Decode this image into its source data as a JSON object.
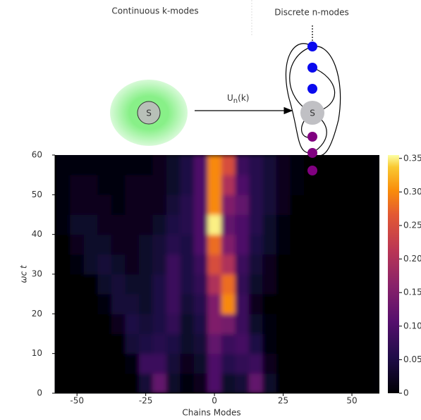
{
  "chart_data": {
    "type": "heatmap",
    "x_label": "Chains Modes",
    "y_label": "ωc t",
    "x": [
      -55,
      -50,
      -45,
      -40,
      -35,
      -30,
      -25,
      -20,
      -15,
      -10,
      -5,
      0,
      5,
      10,
      15,
      20,
      25,
      30,
      35,
      40,
      45,
      50,
      55
    ],
    "y": [
      2.5,
      7.5,
      12.5,
      17.5,
      22.5,
      27.5,
      32.5,
      37.5,
      42.5,
      47.5,
      52.5,
      57.5
    ],
    "z": [
      [
        0,
        0,
        0,
        0,
        0,
        0,
        0.04,
        0.12,
        0.03,
        0.01,
        0.02,
        0.1,
        0.03,
        0.04,
        0.12,
        0.03,
        0,
        0,
        0,
        0,
        0,
        0,
        0
      ],
      [
        0,
        0,
        0,
        0,
        0,
        0.01,
        0.08,
        0.08,
        0.04,
        0.02,
        0.03,
        0.1,
        0.06,
        0.07,
        0.08,
        0.02,
        0,
        0,
        0,
        0,
        0,
        0,
        0
      ],
      [
        0,
        0,
        0,
        0,
        0,
        0.04,
        0.05,
        0.06,
        0.05,
        0.03,
        0.04,
        0.12,
        0.08,
        0.09,
        0.05,
        0.01,
        0,
        0,
        0,
        0,
        0,
        0,
        0
      ],
      [
        0,
        0,
        0,
        0,
        0.02,
        0.05,
        0.04,
        0.05,
        0.07,
        0.03,
        0.05,
        0.15,
        0.14,
        0.08,
        0.03,
        0.01,
        0,
        0,
        0,
        0,
        0,
        0,
        0
      ],
      [
        0,
        0,
        0,
        0.01,
        0.04,
        0.04,
        0.03,
        0.05,
        0.08,
        0.04,
        0.06,
        0.15,
        0.3,
        0.08,
        0.02,
        0,
        0,
        0,
        0,
        0,
        0,
        0,
        0
      ],
      [
        0,
        0,
        0,
        0.03,
        0.04,
        0.03,
        0.03,
        0.05,
        0.08,
        0.05,
        0.07,
        0.2,
        0.28,
        0.07,
        0.03,
        0.02,
        0,
        0,
        0,
        0,
        0,
        0,
        0
      ],
      [
        0,
        0.01,
        0.03,
        0.04,
        0.03,
        0.02,
        0.03,
        0.04,
        0.08,
        0.05,
        0.08,
        0.25,
        0.2,
        0.08,
        0.04,
        0.02,
        0,
        0,
        0,
        0,
        0,
        0,
        0
      ],
      [
        0,
        0.02,
        0.03,
        0.03,
        0.02,
        0.02,
        0.03,
        0.04,
        0.06,
        0.05,
        0.1,
        0.28,
        0.15,
        0.1,
        0.05,
        0.03,
        0.01,
        0,
        0,
        0,
        0,
        0,
        0
      ],
      [
        0.01,
        0.03,
        0.03,
        0.02,
        0.02,
        0.02,
        0.02,
        0.03,
        0.05,
        0.06,
        0.1,
        0.35,
        0.12,
        0.1,
        0.06,
        0.03,
        0.01,
        0,
        0,
        0,
        0,
        0,
        0
      ],
      [
        0.01,
        0.02,
        0.02,
        0.02,
        0.01,
        0.02,
        0.02,
        0.02,
        0.04,
        0.06,
        0.1,
        0.3,
        0.15,
        0.12,
        0.06,
        0.04,
        0.02,
        0,
        0,
        0,
        0,
        0,
        0
      ],
      [
        0.01,
        0.02,
        0.02,
        0.01,
        0.01,
        0.02,
        0.02,
        0.02,
        0.03,
        0.05,
        0.1,
        0.3,
        0.2,
        0.1,
        0.06,
        0.04,
        0.02,
        0.01,
        0,
        0,
        0,
        0,
        0
      ],
      [
        0.01,
        0.01,
        0.01,
        0.01,
        0.01,
        0.01,
        0.01,
        0.02,
        0.03,
        0.05,
        0.1,
        0.3,
        0.25,
        0.08,
        0.06,
        0.04,
        0.02,
        0.01,
        0,
        0,
        0,
        0,
        0
      ]
    ],
    "xlim": [
      -58,
      60
    ],
    "ylim": [
      0,
      60
    ],
    "xticks": [
      -50,
      -25,
      0,
      25,
      50
    ],
    "yticks": [
      0,
      10,
      20,
      30,
      40,
      50,
      60
    ],
    "clim": [
      0,
      0.355
    ],
    "cticks": [
      0,
      {
        "value": 0.05,
        "label": "0.05"
      },
      {
        "value": 0.1,
        "label": "0.10"
      },
      {
        "value": 0.15,
        "label": "0.15"
      },
      {
        "value": 0.2,
        "label": "0.20"
      },
      {
        "value": 0.25,
        "label": "0.25"
      },
      {
        "value": 0.3,
        "label": "0.30"
      },
      {
        "value": 0.35,
        "label": "0.35"
      }
    ]
  },
  "diagram": {
    "left_title": "Continuous k-modes",
    "right_title": "Discrete n-modes",
    "operator": "U",
    "operator_sub": "n",
    "operator_arg": "(k)",
    "left_node": "S",
    "right_node": "S"
  }
}
